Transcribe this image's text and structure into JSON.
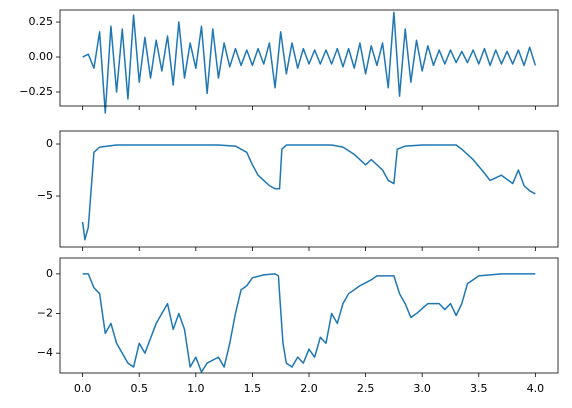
{
  "chart_data": [
    {
      "type": "line",
      "color": "#1f77b4",
      "xlim": [
        -0.2,
        4.2
      ],
      "ylim": [
        -0.35,
        0.336
      ],
      "xticks": [
        0,
        0.5,
        1,
        1.5,
        2,
        2.5,
        3,
        3.5,
        4
      ],
      "xticklabels": false,
      "yticks": [
        {
          "value": 0.25,
          "label": "0.25"
        },
        {
          "value": 0,
          "label": "0.00"
        },
        {
          "value": -0.25,
          "label": "−0.25"
        }
      ],
      "x": [
        0,
        0.05,
        0.1,
        0.15,
        0.2,
        0.25,
        0.3,
        0.35,
        0.4,
        0.45,
        0.5,
        0.55,
        0.6,
        0.65,
        0.7,
        0.75,
        0.8,
        0.85,
        0.9,
        0.95,
        1,
        1.05,
        1.1,
        1.15,
        1.2,
        1.25,
        1.3,
        1.35,
        1.4,
        1.45,
        1.5,
        1.55,
        1.6,
        1.65,
        1.7,
        1.75,
        1.8,
        1.85,
        1.9,
        1.95,
        2,
        2.05,
        2.1,
        2.15,
        2.2,
        2.25,
        2.3,
        2.35,
        2.4,
        2.45,
        2.5,
        2.55,
        2.6,
        2.65,
        2.7,
        2.75,
        2.8,
        2.85,
        2.9,
        2.95,
        3,
        3.05,
        3.1,
        3.15,
        3.2,
        3.25,
        3.3,
        3.35,
        3.4,
        3.45,
        3.5,
        3.55,
        3.6,
        3.65,
        3.7,
        3.75,
        3.8,
        3.85,
        3.9,
        3.95,
        4
      ],
      "values": [
        0,
        0.02,
        -0.08,
        0.18,
        -0.4,
        0.22,
        -0.25,
        0.2,
        -0.3,
        0.3,
        -0.18,
        0.14,
        -0.15,
        0.12,
        -0.1,
        0.15,
        -0.2,
        0.25,
        -0.15,
        0.1,
        -0.08,
        0.22,
        -0.26,
        0.2,
        -0.15,
        0.1,
        -0.07,
        0.06,
        -0.06,
        0.05,
        -0.06,
        0.06,
        -0.05,
        0.1,
        -0.22,
        0.18,
        -0.12,
        0.1,
        -0.08,
        0.06,
        -0.05,
        0.05,
        -0.05,
        0.05,
        -0.05,
        0.06,
        -0.07,
        0.06,
        -0.08,
        0.1,
        -0.12,
        0.08,
        -0.06,
        0.1,
        -0.22,
        0.32,
        -0.28,
        0.2,
        -0.18,
        0.12,
        -0.1,
        0.08,
        -0.06,
        0.05,
        -0.05,
        0.05,
        -0.04,
        0.04,
        -0.04,
        0.05,
        -0.05,
        0.06,
        -0.06,
        0.05,
        -0.05,
        0.04,
        -0.05,
        0.05,
        -0.06,
        0.07,
        -0.06
      ]
    },
    {
      "type": "line",
      "color": "#1f77b4",
      "xlim": [
        -0.2,
        4.2
      ],
      "ylim": [
        -9.9,
        1.25
      ],
      "xticks": [
        0,
        0.5,
        1,
        1.5,
        2,
        2.5,
        3,
        3.5,
        4
      ],
      "xticklabels": false,
      "yticks": [
        0,
        {
          "value": -5,
          "label": "−5"
        }
      ],
      "x": [
        0,
        0.02,
        0.05,
        0.1,
        0.15,
        0.3,
        0.6,
        0.9,
        1.2,
        1.35,
        1.45,
        1.5,
        1.55,
        1.6,
        1.65,
        1.7,
        1.74,
        1.76,
        1.8,
        2.0,
        2.2,
        2.3,
        2.4,
        2.5,
        2.55,
        2.65,
        2.7,
        2.75,
        2.78,
        2.85,
        3.0,
        3.3,
        3.35,
        3.45,
        3.55,
        3.6,
        3.7,
        3.8,
        3.85,
        3.9,
        3.95,
        4.0
      ],
      "values": [
        -7.5,
        -9.2,
        -8,
        -0.8,
        -0.3,
        -0.1,
        -0.1,
        -0.1,
        -0.1,
        -0.2,
        -0.8,
        -2,
        -3,
        -3.5,
        -4,
        -4.3,
        -4.3,
        -0.5,
        -0.1,
        -0.1,
        -0.1,
        -0.3,
        -1,
        -2,
        -1.5,
        -2.5,
        -3.5,
        -3.8,
        -0.5,
        -0.2,
        -0.1,
        -0.1,
        -0.5,
        -1.5,
        -2.8,
        -3.5,
        -3,
        -3.8,
        -2.5,
        -4,
        -4.5,
        -4.8
      ]
    },
    {
      "type": "line",
      "color": "#1f77b4",
      "xlim": [
        -0.2,
        4.2
      ],
      "ylim": [
        -5.0,
        0.8
      ],
      "xticks": [
        {
          "value": 0,
          "label": "0.0"
        },
        0.5,
        {
          "value": 1,
          "label": "1.0"
        },
        1.5,
        {
          "value": 2,
          "label": "2.0"
        },
        2.5,
        {
          "value": 3,
          "label": "3.0"
        },
        3.5,
        {
          "value": 4,
          "label": "4.0"
        }
      ],
      "xticklabels": true,
      "yticks": [
        0,
        {
          "value": -2,
          "label": "−2"
        },
        {
          "value": -4,
          "label": "−4"
        }
      ],
      "x": [
        0,
        0.05,
        0.1,
        0.15,
        0.2,
        0.25,
        0.3,
        0.4,
        0.45,
        0.5,
        0.55,
        0.65,
        0.75,
        0.8,
        0.85,
        0.9,
        0.95,
        1.0,
        1.05,
        1.1,
        1.2,
        1.25,
        1.3,
        1.35,
        1.4,
        1.45,
        1.5,
        1.6,
        1.7,
        1.73,
        1.74,
        1.77,
        1.8,
        1.85,
        1.9,
        1.95,
        2.0,
        2.05,
        2.1,
        2.15,
        2.2,
        2.25,
        2.3,
        2.35,
        2.45,
        2.55,
        2.6,
        2.75,
        2.8,
        2.85,
        2.9,
        2.95,
        3.05,
        3.15,
        3.2,
        3.25,
        3.3,
        3.35,
        3.4,
        3.5,
        3.7,
        4.0
      ],
      "values": [
        0,
        0,
        -0.7,
        -1,
        -3,
        -2.5,
        -3.5,
        -4.5,
        -4.7,
        -3.5,
        -4,
        -2.5,
        -1.5,
        -2.8,
        -2,
        -2.8,
        -4.7,
        -4.2,
        -4.95,
        -4.5,
        -4.2,
        -4.7,
        -3.5,
        -2,
        -0.8,
        -0.6,
        -0.2,
        -0.05,
        0,
        -0.1,
        -1,
        -3.5,
        -4.5,
        -4.7,
        -4.2,
        -4.5,
        -3.8,
        -4.2,
        -3.2,
        -3.5,
        -2,
        -2.5,
        -1.5,
        -1,
        -0.6,
        -0.3,
        -0.1,
        -0.1,
        -1,
        -1.5,
        -2.2,
        -2,
        -1.5,
        -1.5,
        -1.8,
        -1.5,
        -2.1,
        -1.5,
        -0.5,
        -0.1,
        0,
        0
      ]
    }
  ]
}
